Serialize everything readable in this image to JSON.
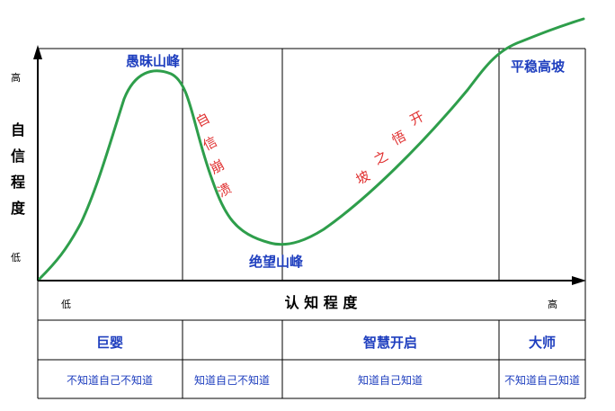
{
  "y_axis": {
    "title": "自信程度",
    "high": "高",
    "low": "低"
  },
  "x_axis": {
    "title": "认 知 程 度",
    "low": "低",
    "high": "高"
  },
  "curve_labels": {
    "peak": "愚昧山峰",
    "crash": "自信崩溃",
    "valley": "绝望山峰",
    "slope": "开悟之坡",
    "plateau": "平稳高坡"
  },
  "stages": [
    {
      "name": "巨婴",
      "desc": "不知道自己不知道"
    },
    {
      "name": "",
      "desc": "知道自己不知道"
    },
    {
      "name": "智慧开启",
      "desc": "知道自己知道"
    },
    {
      "name": "大师",
      "desc": "不知道自己知道"
    }
  ],
  "colors": {
    "curve": "#2e9e4b",
    "title_blue": "#1f3fbf",
    "red_text": "#e03030",
    "line": "#000000"
  }
}
